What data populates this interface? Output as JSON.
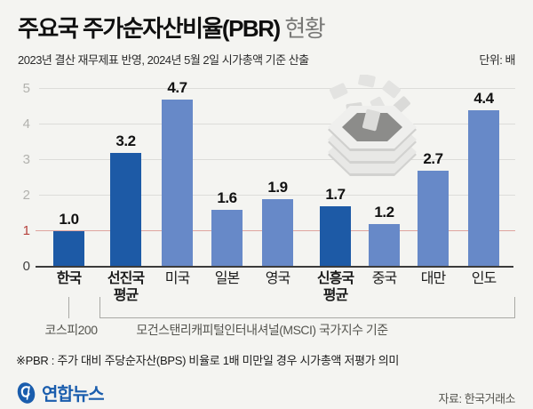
{
  "header": {
    "title_main": "주요국 주가순자산비율(PBR)",
    "title_suffix": " 현황",
    "subtitle": "2023년 결산 재무제표 반영, 2024년 5월 2일 시가총액 기준 산출",
    "unit_label": "단위: 배"
  },
  "chart_data": {
    "type": "bar",
    "title": "주요국 주가순자산비율(PBR) 현황",
    "unit": "배",
    "categories": [
      "한국",
      "선진국 평균",
      "미국",
      "일본",
      "영국",
      "신흥국 평균",
      "중국",
      "대만",
      "인도"
    ],
    "values": [
      1.0,
      3.2,
      4.7,
      1.6,
      1.9,
      1.7,
      1.2,
      2.7,
      4.4
    ],
    "value_labels": [
      "1.0",
      "3.2",
      "4.7",
      "1.6",
      "1.9",
      "1.7",
      "1.2",
      "2.7",
      "4.4"
    ],
    "label_lines": [
      [
        "한국"
      ],
      [
        "선진국",
        "평균"
      ],
      [
        "미국"
      ],
      [
        "일본"
      ],
      [
        "영국"
      ],
      [
        "신흥국",
        "평균"
      ],
      [
        "중국"
      ],
      [
        "대만"
      ],
      [
        "인도"
      ]
    ],
    "emphasized": [
      true,
      true,
      false,
      false,
      false,
      true,
      false,
      false,
      false
    ],
    "bar_shades": [
      "dark",
      "dark",
      "light",
      "light",
      "light",
      "dark",
      "light",
      "light",
      "light"
    ],
    "ylim": [
      0,
      5
    ],
    "yticks": [
      0,
      1,
      2,
      3,
      4,
      5
    ],
    "reference_line_y": 1,
    "grid": true,
    "legend": false,
    "colors": {
      "dark_bar": "#1d5aa6",
      "light_bar": "#6789c8",
      "reference_line": "#dfa49e",
      "reference_label": "#b5413c",
      "grid_line": "#dcdcd9",
      "axis_line": "#3b3b3b",
      "tick_label": "#b2b2ae",
      "zero_label": "#3f3f3f"
    }
  },
  "annotations": {
    "kospi": "코스피200",
    "msci": "모건스탠리캐피털인터내셔널(MSCI) 국가지수 기준"
  },
  "footnote": "※PBR : 주가 대비 주당순자산(BPS) 비율로 1배 미만일 경우 시가총액 저평가 의미",
  "footer": {
    "brand": "연합뉴스",
    "source": "자료: 한국거래소"
  }
}
